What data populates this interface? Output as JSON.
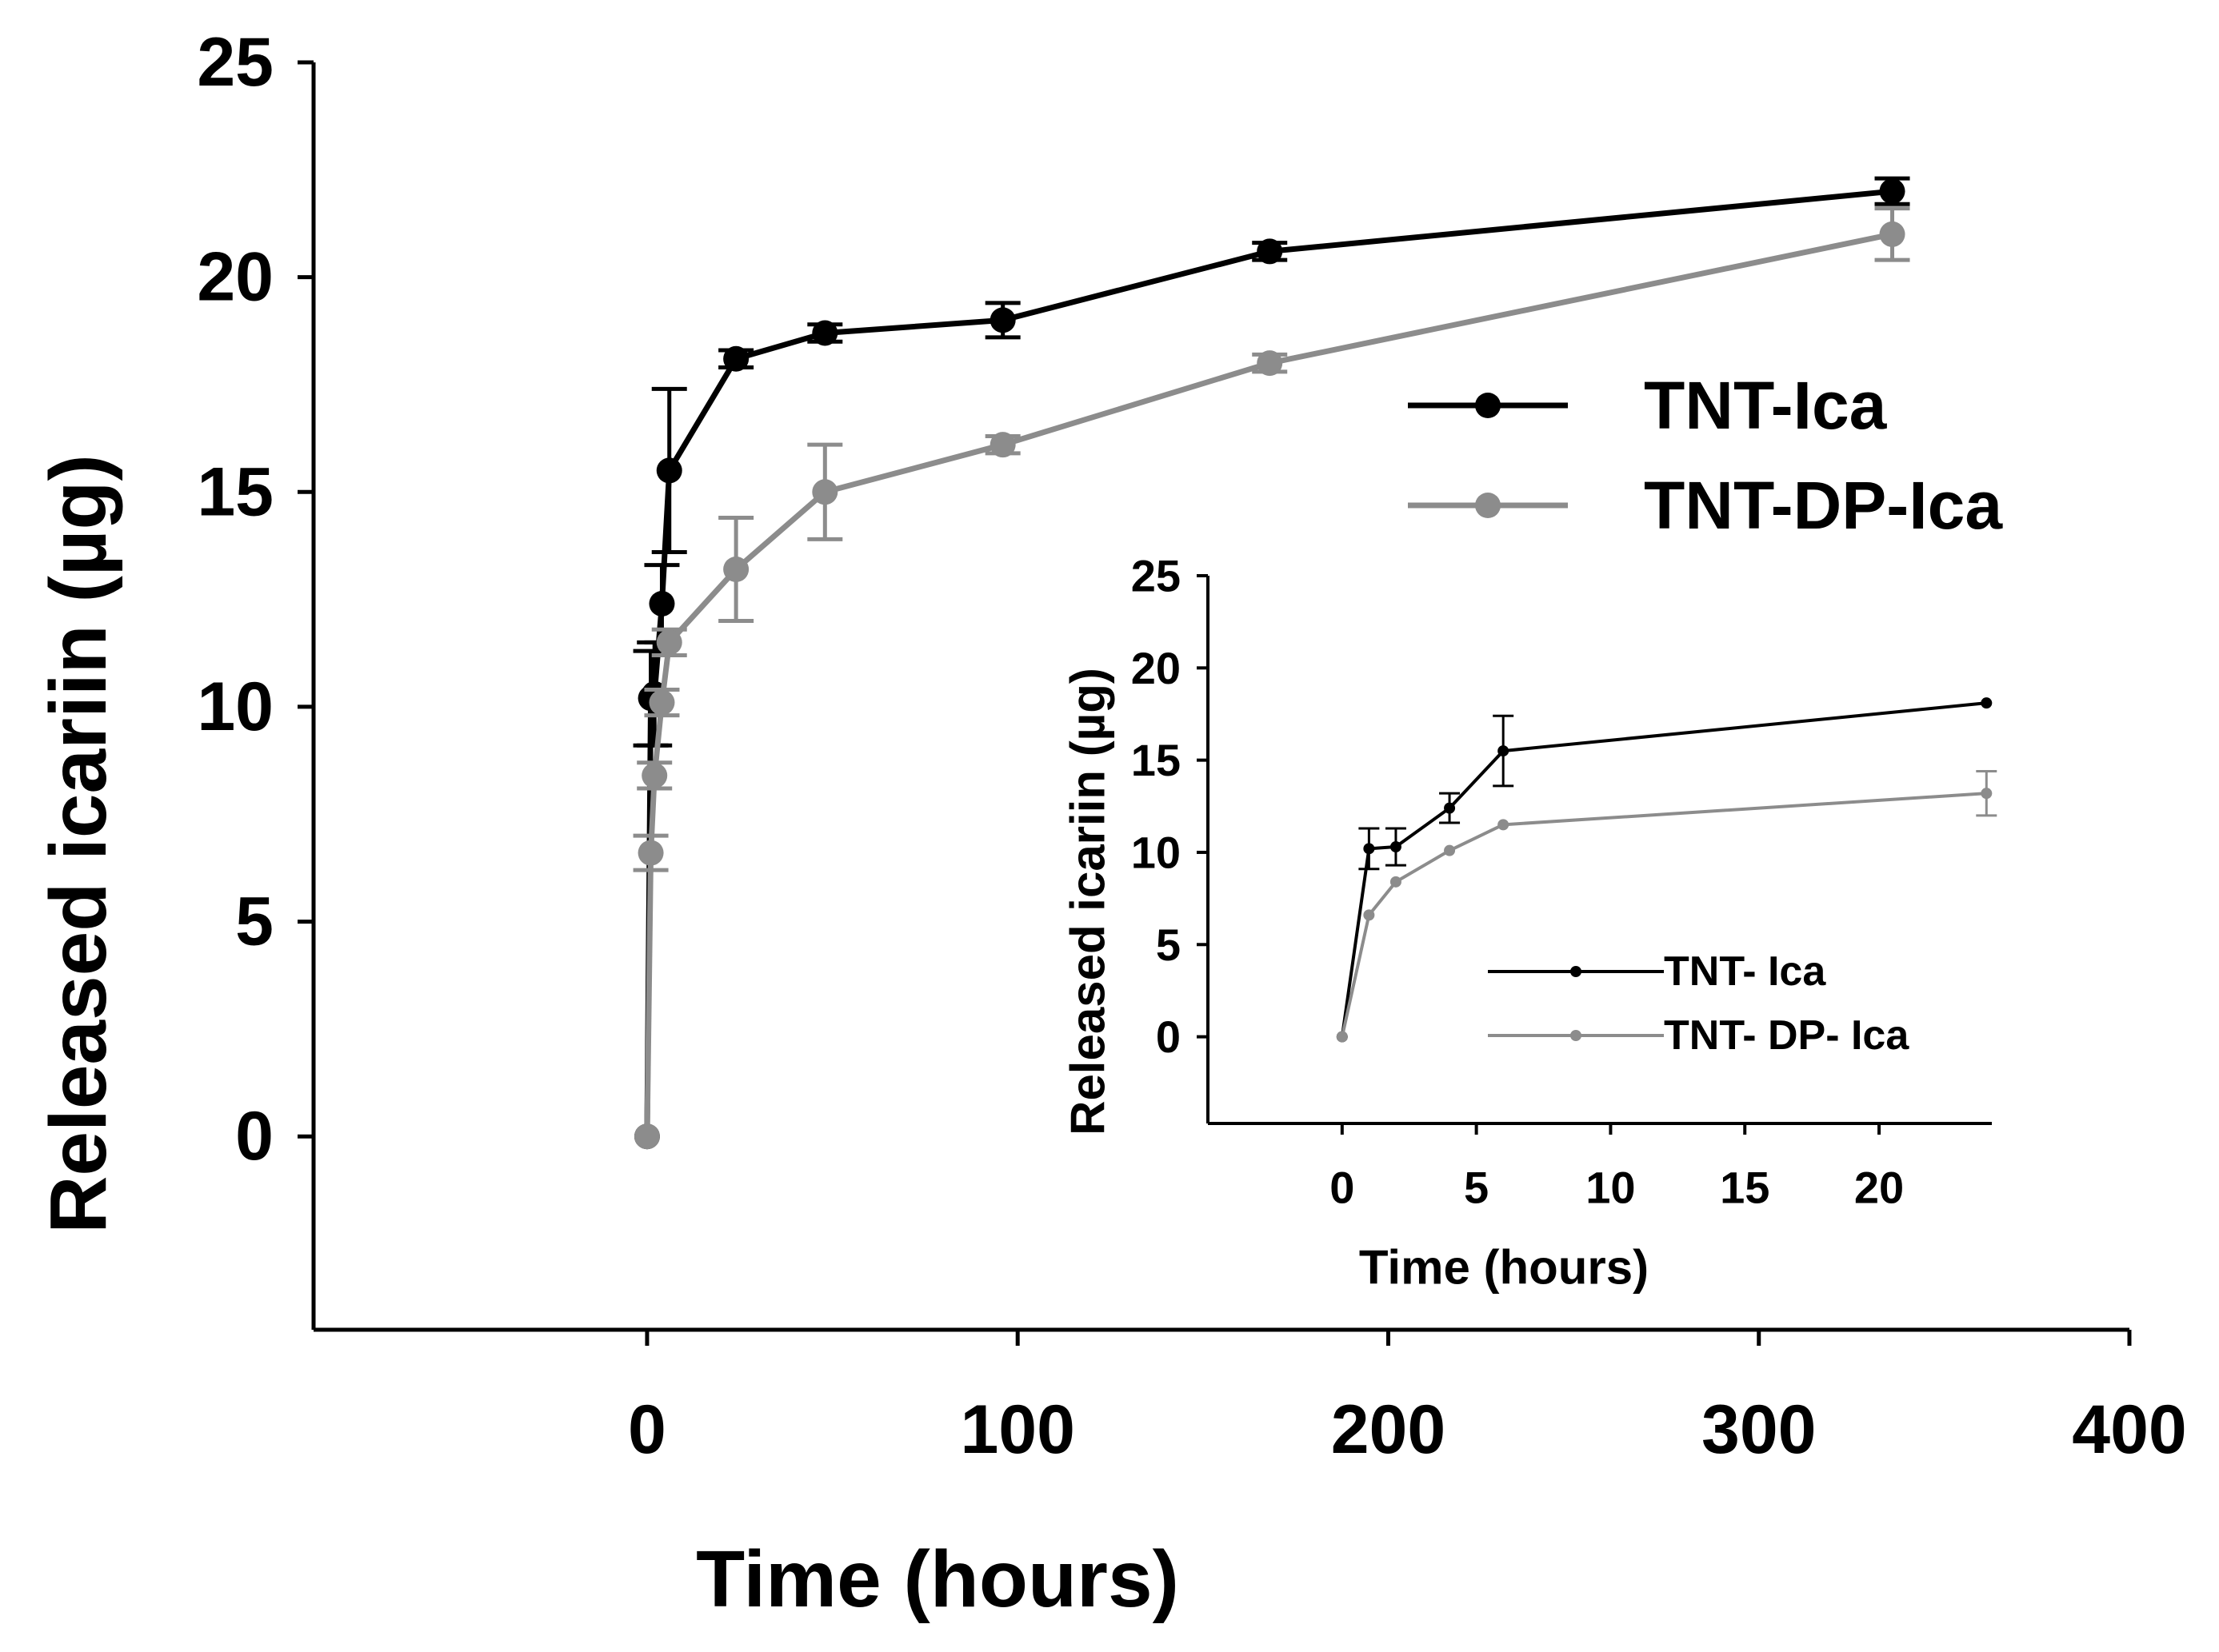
{
  "chart_data": [
    {
      "id": "main",
      "type": "line",
      "title": "",
      "xlabel": "Time (hours)",
      "ylabel": "Released icariin (µg)",
      "xlim": [
        -90,
        400
      ],
      "ylim": [
        -4.5,
        25
      ],
      "xticks": [
        0,
        100,
        200,
        300,
        400
      ],
      "yticks": [
        0,
        5,
        10,
        15,
        20,
        25
      ],
      "legend_position": "center-right",
      "series": [
        {
          "name": "TNT-Ica",
          "color": "#000000",
          "x": [
            0,
            1,
            2,
            4,
            6,
            24,
            48,
            96,
            168,
            336
          ],
          "y": [
            0,
            10.2,
            10.3,
            12.4,
            15.5,
            18.1,
            18.7,
            19.0,
            20.6,
            22.0
          ],
          "err": [
            0,
            1.1,
            1.2,
            0.9,
            1.9,
            0.2,
            0.2,
            0.4,
            0.2,
            0.3
          ]
        },
        {
          "name": "TNT-DP-Ica",
          "color": "#8c8c8c",
          "x": [
            0,
            1,
            2,
            4,
            6,
            24,
            48,
            96,
            168,
            336
          ],
          "y": [
            0,
            6.6,
            8.4,
            10.1,
            11.5,
            13.2,
            15.0,
            16.1,
            18.0,
            21.0
          ],
          "err": [
            0,
            0.4,
            0.3,
            0.3,
            0.3,
            1.2,
            1.1,
            0.2,
            0.2,
            0.6
          ]
        }
      ]
    },
    {
      "id": "inset",
      "type": "line",
      "title": "",
      "xlabel": "Time (hours)",
      "ylabel": "Released icariin (µg)",
      "xlim": [
        -5,
        24.2
      ],
      "ylim": [
        -4.7,
        25
      ],
      "xticks": [
        0,
        5,
        10,
        15,
        20
      ],
      "yticks": [
        0,
        5,
        10,
        15,
        20,
        25
      ],
      "legend_position": "bottom-center",
      "series": [
        {
          "name": "TNT- Ica",
          "color": "#000000",
          "x": [
            0,
            1,
            2,
            4,
            6,
            24
          ],
          "y": [
            0,
            10.2,
            10.3,
            12.4,
            15.5,
            18.1
          ],
          "err": [
            0,
            1.1,
            1.0,
            0.8,
            1.9,
            0
          ]
        },
        {
          "name": "TNT- DP- Ica",
          "color": "#8c8c8c",
          "x": [
            0,
            1,
            2,
            4,
            6,
            24
          ],
          "y": [
            0,
            6.6,
            8.4,
            10.1,
            11.5,
            13.2
          ],
          "err": [
            0,
            0,
            0,
            0,
            0,
            1.2
          ]
        }
      ]
    }
  ]
}
